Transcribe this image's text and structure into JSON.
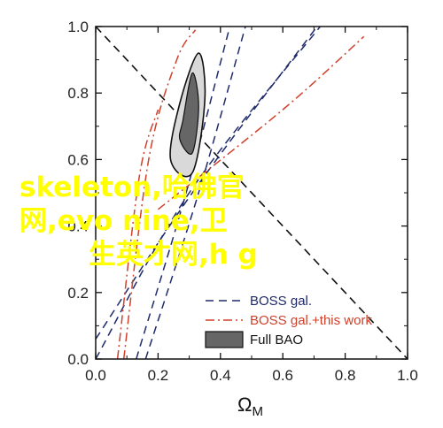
{
  "chart_data": {
    "type": "line",
    "title": "",
    "xlabel": "Ω",
    "xlabel_sub": "M",
    "ylabel": "",
    "xlim": [
      0,
      1
    ],
    "ylim": [
      0,
      1
    ],
    "x_ticks": [
      "0.0",
      "0.2",
      "0.4",
      "0.6",
      "0.8",
      "1.0"
    ],
    "y_ticks": [
      "0.0",
      "0.2",
      "0.4",
      "0.6",
      "0.8",
      "1.0"
    ],
    "legend_position": "bottom-right",
    "reference_line": {
      "name": "flat",
      "x": [
        0,
        1
      ],
      "y": [
        1,
        0
      ],
      "style": "dashed",
      "color": "#111111"
    },
    "series": [
      {
        "name": "BOSS gal.",
        "color": "#1f2a6b",
        "style": "dashed",
        "contours": [
          [
            [
              0.16,
              0.0
            ],
            [
              0.33,
              0.5
            ],
            [
              0.48,
              1.0
            ]
          ],
          [
            [
              0.13,
              0.0
            ],
            [
              0.29,
              0.5
            ],
            [
              0.43,
              1.0
            ]
          ],
          [
            [
              0.0,
              0.06
            ],
            [
              0.31,
              0.5
            ],
            [
              0.71,
              1.0
            ]
          ],
          [
            [
              0.0,
              0.0
            ],
            [
              0.3,
              0.5
            ],
            [
              0.72,
              1.0
            ]
          ]
        ]
      },
      {
        "name": "BOSS gal.+this work",
        "color": "#d0402a",
        "style": "dashdot",
        "contours": [
          [
            [
              0.09,
              0.0
            ],
            [
              0.17,
              0.6
            ],
            [
              0.26,
              0.9
            ],
            [
              0.32,
              0.99
            ]
          ],
          [
            [
              0.07,
              0.0
            ],
            [
              0.14,
              0.55
            ],
            [
              0.2,
              0.75
            ]
          ],
          [
            [
              0.2,
              0.45
            ],
            [
              0.6,
              0.75
            ],
            [
              0.86,
              0.97
            ]
          ]
        ]
      },
      {
        "name": "Full BAO",
        "color": "#666666",
        "style": "filled",
        "contours": [
          [
            [
              0.31,
              0.56
            ],
            [
              0.35,
              0.78
            ],
            [
              0.33,
              0.92
            ],
            [
              0.27,
              0.77
            ],
            [
              0.24,
              0.6
            ]
          ],
          [
            [
              0.31,
              0.62
            ],
            [
              0.33,
              0.76
            ],
            [
              0.31,
              0.86
            ],
            [
              0.28,
              0.72
            ],
            [
              0.27,
              0.66
            ]
          ]
        ]
      }
    ],
    "overlay_text": [
      "skeleton,哈佛官",
      "网,evo nine,卫",
      "生英才网,h g"
    ]
  }
}
